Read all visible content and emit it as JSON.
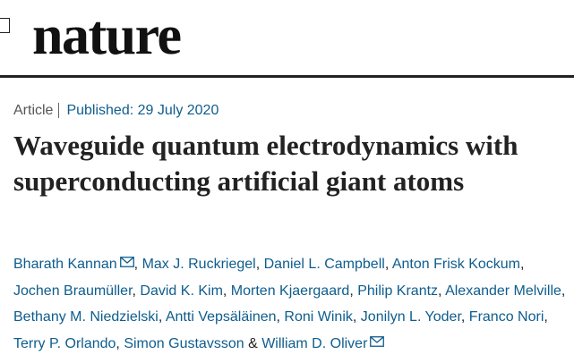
{
  "header": {
    "logo": "nature"
  },
  "article": {
    "type": "Article",
    "published": "Published: 29 July 2020",
    "title": "Waveguide quantum electrodynamics with superconducting artificial giant atoms",
    "separator": ",",
    "last_separator": "&",
    "authors": [
      "Bharath Kannan",
      "Max J. Ruckriegel",
      "Daniel L. Campbell",
      "Anton Frisk Kockum",
      "Jochen Braumüller",
      "David K. Kim",
      "Morten Kjaergaard",
      "Philip Krantz",
      "Alexander Melville",
      "Bethany M. Niedzielski",
      "Antti Vepsäläinen",
      "Roni Winik",
      "Jonilyn L. Yoder",
      "Franco Nori",
      "Terry P. Orlando",
      "Simon Gustavsson",
      "William D. Oliver"
    ],
    "corresponding": [
      0,
      16
    ]
  }
}
